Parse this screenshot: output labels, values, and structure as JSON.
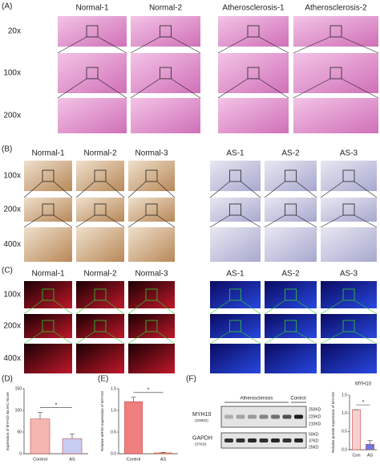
{
  "panels": {
    "A": {
      "label": "(A)",
      "columns": [
        "Normal-1",
        "Normal-2",
        "Atherosclerosis-1",
        "Atherosclerosis-2"
      ],
      "rows": [
        "20x",
        "100x",
        "200x"
      ]
    },
    "B": {
      "label": "(B)",
      "columns": [
        "Normal-1",
        "Normal-2",
        "Normal-3",
        "AS-1",
        "AS-2",
        "AS-3"
      ],
      "rows": [
        "100x",
        "200x",
        "400x"
      ]
    },
    "C": {
      "label": "(C)",
      "columns": [
        "Normal-1",
        "Normal-2",
        "Normal-3",
        "AS-1",
        "AS-2",
        "AS-3"
      ],
      "rows": [
        "100x",
        "200x",
        "400x"
      ]
    }
  },
  "blot": {
    "label": "(F)",
    "group": "Atherosclerosis",
    "control": "Control",
    "proteins": [
      {
        "name": "MYH10",
        "size": "(229KD)"
      },
      {
        "name": "GAPDH",
        "size": "(37KD)"
      }
    ],
    "markers": [
      "250KD",
      "229KD",
      "210KD",
      "50KD",
      "37KD",
      "25KD"
    ]
  },
  "chart_data": [
    {
      "type": "bar",
      "label": "(D)",
      "ylabel": "Expression of MYH10 via IHC-Score",
      "categories": [
        "Control",
        "AS"
      ],
      "values": [
        80,
        35
      ],
      "errors": [
        15,
        10
      ],
      "colors": [
        "#f4b6b0",
        "#c8ccf0"
      ],
      "ylim": [
        0,
        150
      ],
      "yticks": [
        0,
        50,
        100,
        150
      ],
      "annotation": "*"
    },
    {
      "type": "bar",
      "label": "(E)",
      "ylabel": "Relative mRNA expression of MYH10",
      "categories": [
        "Control",
        "AS"
      ],
      "values": [
        1.2,
        0.02
      ],
      "errors": [
        0.1,
        0.01
      ],
      "colors": [
        "#f08080",
        "#f0c060"
      ],
      "ylim": [
        0,
        1.5
      ],
      "yticks": [
        {
          "value": 0,
          "label": "0.0"
        },
        0.5,
        {
          "value": 1,
          "label": "1.0"
        },
        1.5
      ],
      "annotation": "*"
    },
    {
      "type": "bar",
      "title": "MYH10",
      "ylabel": "Relative protein expression of MYH10",
      "categories": [
        "Con",
        "AS"
      ],
      "values": [
        1.1,
        0.15
      ],
      "errors": [
        0,
        0.1
      ],
      "colors": [
        "#f8d0d0",
        "#6a78e0"
      ],
      "ylim": [
        0,
        1.5
      ],
      "yticks": [
        {
          "value": 0,
          "label": "0.0"
        },
        0.5,
        {
          "value": 1,
          "label": "1.0"
        },
        1.5
      ],
      "annotation": "*"
    }
  ]
}
